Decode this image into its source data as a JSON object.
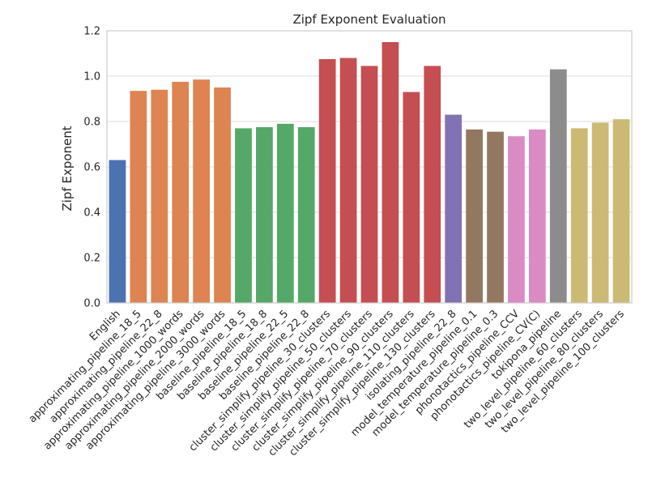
{
  "chart_data": {
    "type": "bar",
    "title": "Zipf Exponent Evaluation",
    "xlabel": "",
    "ylabel": "Zipf Exponent",
    "ylim": [
      0,
      1.2
    ],
    "yticks": [
      "0.0",
      "0.2",
      "0.4",
      "0.6",
      "0.8",
      "1.0",
      "1.2"
    ],
    "grid": "horizontal",
    "categories": [
      "English",
      "approximating_pipeline_18_5",
      "approximating_pipeline_22_8",
      "approximating_pipeline_1000_words",
      "approximating_pipeline_2000_words",
      "approximating_pipeline_3000_words",
      "baseline_pipeline_18_5",
      "baseline_pipeline_18_8",
      "baseline_pipeline_22_5",
      "baseline_pipeline_22_8",
      "cluster_simplify_pipeline_30_clusters",
      "cluster_simplify_pipeline_50_clusters",
      "cluster_simplify_pipeline_70_clusters",
      "cluster_simplify_pipeline_90_clusters",
      "cluster_simplify_pipeline_110_clusters",
      "cluster_simplify_pipeline_130_clusters",
      "isolating_pipeline_22_8",
      "model_temperature_pipeline_0.1",
      "model_temperature_pipeline_0.3",
      "phonotactics_pipeline_CCV",
      "phonotactics_pipeline_CV(C)",
      "tokipona_pipeline",
      "two_level_pipeline_60_clusters",
      "two_level_pipeline_80_clusters",
      "two_level_pipeline_100_clusters"
    ],
    "values": [
      0.63,
      0.935,
      0.94,
      0.975,
      0.985,
      0.95,
      0.77,
      0.775,
      0.79,
      0.775,
      1.075,
      1.08,
      1.045,
      1.15,
      0.93,
      1.045,
      0.83,
      0.765,
      0.755,
      0.735,
      0.765,
      1.03,
      0.77,
      0.795,
      0.81
    ],
    "colors": [
      "#4c72b0",
      "#dd8452",
      "#dd8452",
      "#dd8452",
      "#dd8452",
      "#dd8452",
      "#55a868",
      "#55a868",
      "#55a868",
      "#55a868",
      "#c44e52",
      "#c44e52",
      "#c44e52",
      "#c44e52",
      "#c44e52",
      "#c44e52",
      "#8172b3",
      "#937860",
      "#937860",
      "#da8bc3",
      "#da8bc3",
      "#8c8c8c",
      "#ccb974",
      "#ccb974",
      "#ccb974"
    ]
  }
}
